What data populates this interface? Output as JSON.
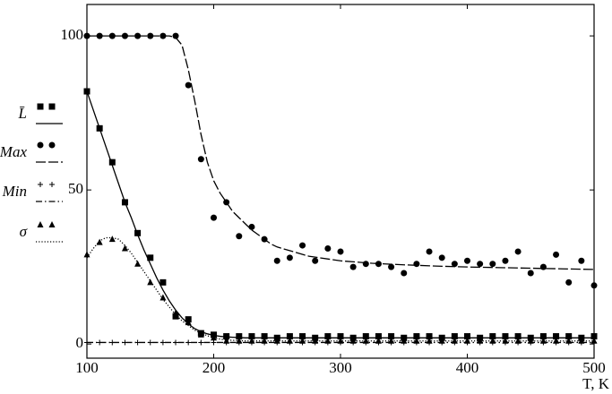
{
  "chart_data": {
    "type": "scatter",
    "x_label": "T, K",
    "xlim": [
      100,
      500
    ],
    "xticks": [
      100,
      200,
      300,
      400,
      500
    ],
    "ylim": [
      -4.6,
      110.2
    ],
    "yticks": [
      0,
      50,
      100
    ],
    "x": [
      100,
      110,
      120,
      130,
      140,
      150,
      160,
      170,
      180,
      190,
      200,
      210,
      220,
      230,
      240,
      250,
      260,
      270,
      280,
      290,
      300,
      310,
      320,
      330,
      340,
      350,
      360,
      370,
      380,
      390,
      400,
      410,
      420,
      430,
      440,
      450,
      460,
      470,
      480,
      490,
      500
    ],
    "fit_x": [
      100,
      105,
      110,
      115,
      120,
      125,
      130,
      135,
      140,
      145,
      150,
      155,
      160,
      165,
      170,
      175,
      180,
      185,
      190,
      195,
      200,
      205,
      210,
      215,
      220,
      225,
      230,
      235,
      240,
      245,
      250,
      275,
      300,
      325,
      350,
      375,
      400,
      425,
      450,
      475,
      500
    ],
    "series": [
      {
        "name": "L̄",
        "marker": "square",
        "dash": "solid",
        "color": "#000000",
        "values": [
          82,
          70,
          59,
          46,
          36,
          28,
          20,
          9,
          8,
          3.5,
          3,
          2.5,
          2.5,
          2.5,
          2.5,
          2,
          2.5,
          2.5,
          2,
          2.5,
          2.5,
          2,
          2.5,
          2.5,
          2.5,
          2,
          2.5,
          2.5,
          2,
          2.5,
          2.5,
          2,
          2.5,
          2.5,
          2.5,
          2,
          2.5,
          2.5,
          2.5,
          2,
          2.5
        ],
        "fit": [
          82,
          76,
          70,
          64,
          58,
          52,
          46,
          41,
          35.5,
          30.5,
          26,
          21.5,
          17.5,
          14,
          11,
          8.5,
          6.5,
          5,
          4,
          3.3,
          2.8,
          2.5,
          2.3,
          2.2,
          2.1,
          2,
          2,
          2,
          2,
          2,
          2,
          2,
          2,
          2,
          2,
          2,
          2,
          2,
          2,
          2,
          2
        ]
      },
      {
        "name": "Max",
        "marker": "circle",
        "dash": "dashed",
        "color": "#000000",
        "values": [
          100,
          100,
          100,
          100,
          100,
          100,
          100,
          100,
          84,
          60,
          41,
          46,
          35,
          38,
          34,
          27,
          28,
          32,
          27,
          31,
          30,
          25,
          26,
          26,
          25,
          23,
          26,
          30,
          28,
          26,
          27,
          26,
          26,
          27,
          30,
          23,
          25,
          29,
          20,
          27,
          19
        ],
        "fit": [
          100,
          100,
          100,
          100,
          100,
          100,
          100,
          100,
          100,
          100,
          100,
          100,
          100,
          100,
          99.5,
          97,
          89,
          79,
          68,
          59,
          53,
          49,
          46,
          43,
          41,
          39,
          37,
          35.5,
          34,
          32.5,
          31.5,
          28.5,
          27,
          26.2,
          25.7,
          25.3,
          25,
          24.8,
          24.6,
          24.4,
          24.2
        ]
      },
      {
        "name": "Min",
        "marker": "plus",
        "dash": "dashdot",
        "color": "#000000",
        "values": [
          0.5,
          0.5,
          0.5,
          0.5,
          0.5,
          0.5,
          0.5,
          0.5,
          0.5,
          0.5,
          0.5,
          0.5,
          0.5,
          0.5,
          0.5,
          0.5,
          0.5,
          0.5,
          0.5,
          0.5,
          0.5,
          0.5,
          0.5,
          0.5,
          0.5,
          0.5,
          0.5,
          0.5,
          0.5,
          0.5,
          0.5,
          0.5,
          0.5,
          0.5,
          0.5,
          0.5,
          0.5,
          0.5,
          0.5,
          0.5,
          0.5
        ],
        "fit": [
          0.5,
          0.5,
          0.5,
          0.5,
          0.5,
          0.5,
          0.5,
          0.5,
          0.5,
          0.5,
          0.5,
          0.5,
          0.5,
          0.5,
          0.5,
          0.5,
          0.5,
          0.5,
          0.5,
          0.5,
          0.5,
          0.5,
          0.5,
          0.5,
          0.5,
          0.5,
          0.5,
          0.5,
          0.5,
          0.5,
          0.5,
          0.5,
          0.5,
          0.5,
          0.5,
          0.5,
          0.5,
          0.5,
          0.5,
          0.5,
          0.5
        ]
      },
      {
        "name": "σ",
        "marker": "triangle",
        "dash": "dotted",
        "color": "#000000",
        "values": [
          29,
          33,
          34,
          31,
          26,
          20,
          15,
          10,
          7,
          3,
          2,
          1,
          1,
          1,
          1,
          1,
          1,
          1,
          1,
          1,
          1,
          1,
          1,
          1,
          1,
          1,
          1,
          1,
          1,
          1,
          1,
          1,
          1,
          1,
          1,
          1,
          1,
          1,
          1,
          1,
          1
        ],
        "fit": [
          28,
          31,
          33.5,
          34.5,
          34.5,
          34,
          32,
          29.5,
          26.5,
          23.5,
          20.5,
          17.5,
          14.5,
          12,
          9.5,
          7.5,
          6,
          4.5,
          3.5,
          2.7,
          2,
          1.6,
          1.3,
          1.2,
          1.1,
          1,
          1,
          1,
          1,
          1,
          1,
          1,
          1,
          1,
          1,
          1,
          1,
          1,
          1,
          1,
          1
        ]
      }
    ]
  }
}
